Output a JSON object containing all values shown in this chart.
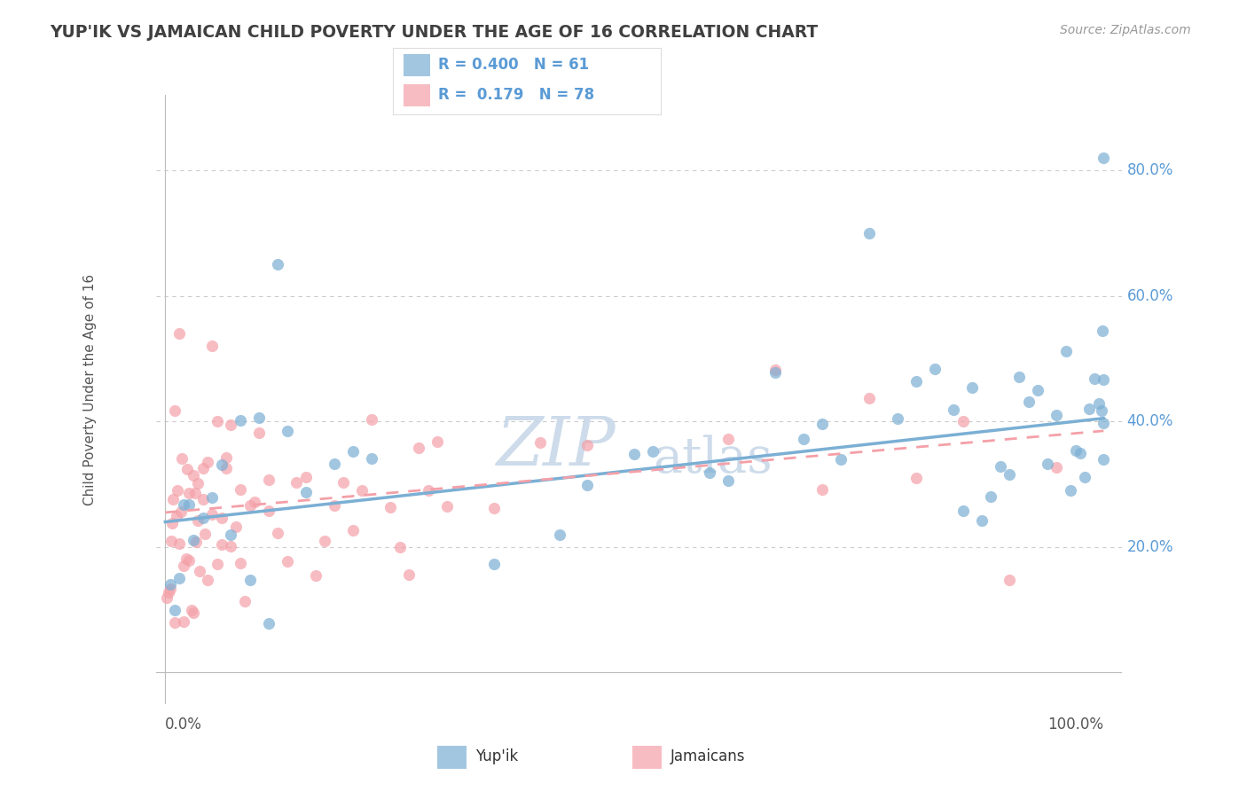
{
  "title": "YUP'IK VS JAMAICAN CHILD POVERTY UNDER THE AGE OF 16 CORRELATION CHART",
  "source_text": "Source: ZipAtlas.com",
  "ylabel": "Child Poverty Under the Age of 16",
  "yupik_R": "0.400",
  "yupik_N": "61",
  "jamaican_R": "0.179",
  "jamaican_N": "78",
  "yupik_color": "#7BAFD4",
  "jamaican_color": "#F4A0A8",
  "background_color": "#FFFFFF",
  "grid_color": "#CCCCCC",
  "axis_label_color": "#5B9BD5",
  "title_color": "#404040",
  "watermark_color": "#C8D8E8",
  "xlim": [
    0,
    100
  ],
  "ylim": [
    0,
    90
  ],
  "ytick_vals": [
    20,
    40,
    60,
    80
  ],
  "yupik_trend_start": 24.0,
  "yupik_trend_end": 40.5,
  "jamaican_trend_start": 25.5,
  "jamaican_trend_end": 38.5
}
